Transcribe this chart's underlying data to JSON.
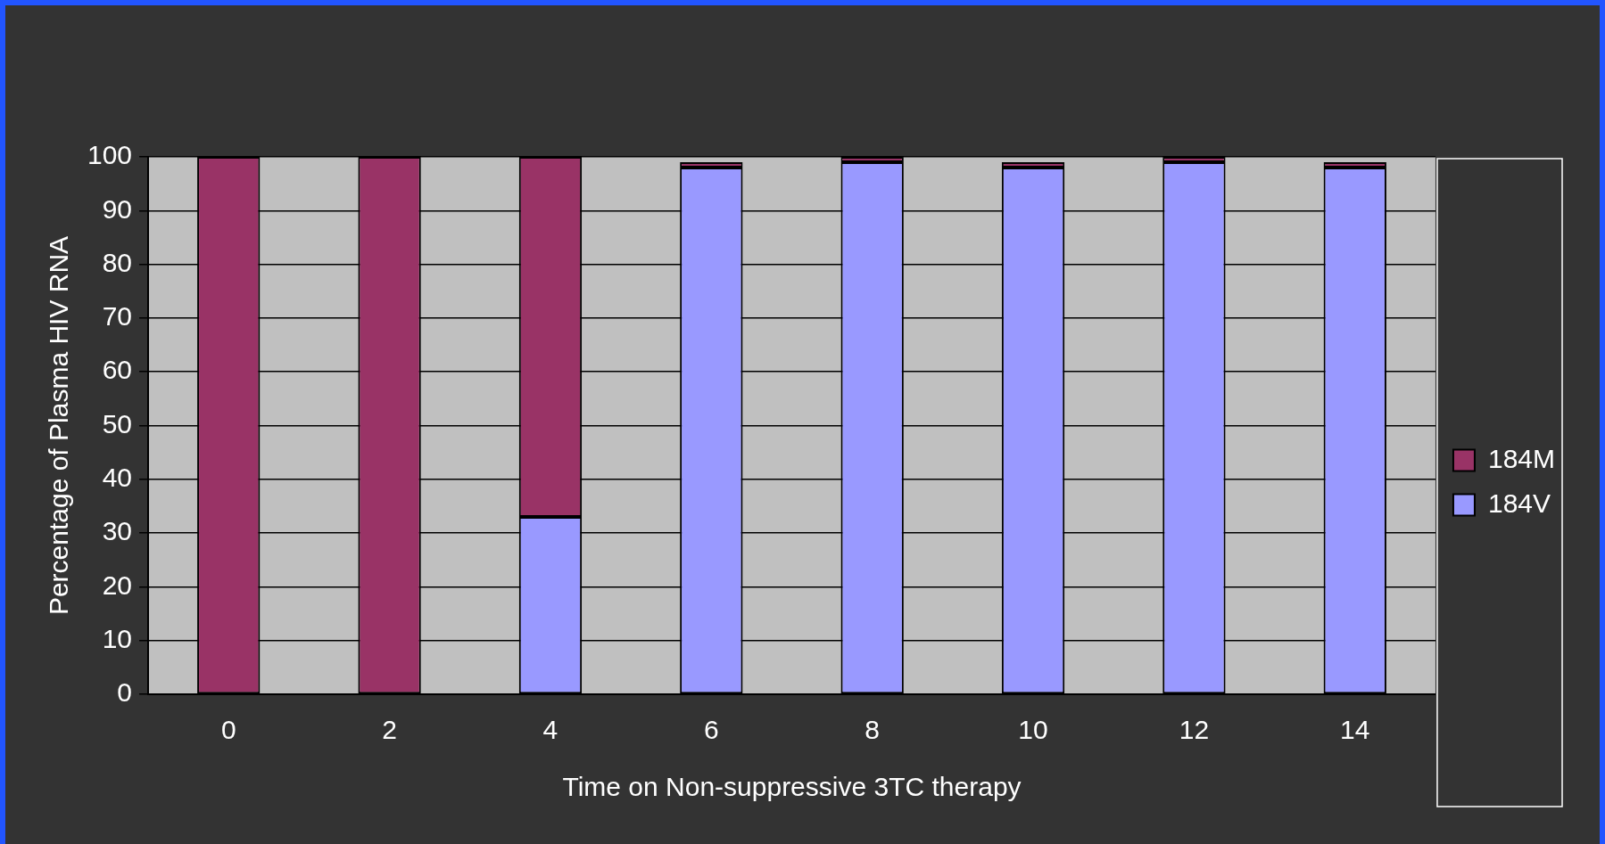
{
  "chart_data": {
    "type": "bar",
    "stacked": true,
    "xlabel": "Time on Non-suppressive 3TC therapy",
    "ylabel": "Percentage of Plasma HIV RNA",
    "categories": [
      "0",
      "2",
      "4",
      "6",
      "8",
      "10",
      "12",
      "14"
    ],
    "series": [
      {
        "name": "184V",
        "color": "#9999ff",
        "values": [
          0,
          0,
          33,
          98,
          99,
          98,
          99,
          98
        ]
      },
      {
        "name": "184M",
        "color": "#993366",
        "values": [
          100,
          100,
          67,
          1,
          1,
          1,
          1,
          1
        ]
      }
    ],
    "ylim": [
      0,
      100
    ],
    "yticks": [
      0,
      10,
      20,
      30,
      40,
      50,
      60,
      70,
      80,
      90,
      100
    ],
    "grid": "y",
    "legend": "right"
  }
}
